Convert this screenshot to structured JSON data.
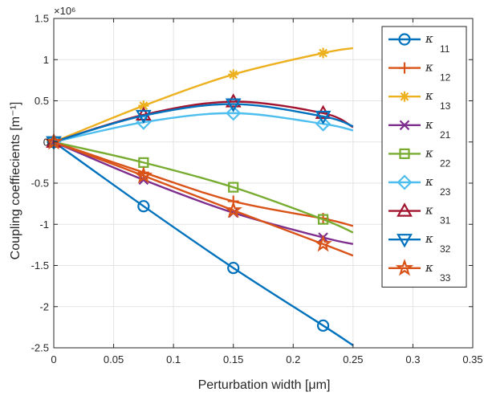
{
  "chart_data": {
    "type": "line",
    "xlabel": "Perturbation width [μm]",
    "ylabel": "Coupling coeffiecients [m⁻¹]",
    "y_exponent_label": "×10⁶",
    "xlim": [
      0,
      0.35
    ],
    "ylim": [
      -2.5,
      1.5
    ],
    "x_ticks": [
      "0",
      "0.05",
      "0.1",
      "0.15",
      "0.2",
      "0.25",
      "0.3",
      "0.35"
    ],
    "y_ticks": [
      "1.5",
      "1",
      "0.5",
      "0",
      "-0.5",
      "-1",
      "-1.5",
      "-2",
      "-2.5"
    ],
    "grid": true,
    "legend_position": "top-right, outside plot area",
    "x": [
      0,
      0.075,
      0.15,
      0.225
    ],
    "curve_x_max": 0.25,
    "series": [
      {
        "name": "κ",
        "sub": "11",
        "color": "#0072BD",
        "marker": "circle",
        "values": [
          0,
          -0.78,
          -1.53,
          -2.23
        ],
        "end_value": -2.47
      },
      {
        "name": "κ",
        "sub": "12",
        "color": "#D95319",
        "marker": "plus",
        "values": [
          0,
          -0.37,
          -0.72,
          -0.93
        ],
        "end_value": -1.02
      },
      {
        "name": "κ",
        "sub": "13",
        "color": "#EDB120",
        "marker": "asterisk",
        "values": [
          0,
          0.44,
          0.82,
          1.08
        ],
        "end_value": 1.14
      },
      {
        "name": "κ",
        "sub": "21",
        "color": "#7E2F8E",
        "marker": "x",
        "values": [
          0,
          -0.46,
          -0.86,
          -1.16
        ],
        "end_value": -1.24
      },
      {
        "name": "κ",
        "sub": "22",
        "color": "#77AC30",
        "marker": "square",
        "values": [
          0,
          -0.25,
          -0.55,
          -0.94
        ],
        "end_value": -1.1
      },
      {
        "name": "κ",
        "sub": "23",
        "color": "#4DBEEE",
        "marker": "diamond",
        "values": [
          0,
          0.24,
          0.35,
          0.22
        ],
        "end_value": 0.14
      },
      {
        "name": "κ",
        "sub": "31",
        "color": "#A2142F",
        "marker": "triangle-up",
        "values": [
          0,
          0.33,
          0.49,
          0.35
        ],
        "end_value": 0.18
      },
      {
        "name": "κ",
        "sub": "32",
        "color": "#0072BD",
        "marker": "triangle-down",
        "values": [
          0,
          0.32,
          0.46,
          0.31
        ],
        "end_value": 0.19
      },
      {
        "name": "κ",
        "sub": "33",
        "color": "#D95319",
        "marker": "pentagram",
        "values": [
          0,
          -0.41,
          -0.83,
          -1.24
        ],
        "end_value": -1.38
      }
    ]
  }
}
